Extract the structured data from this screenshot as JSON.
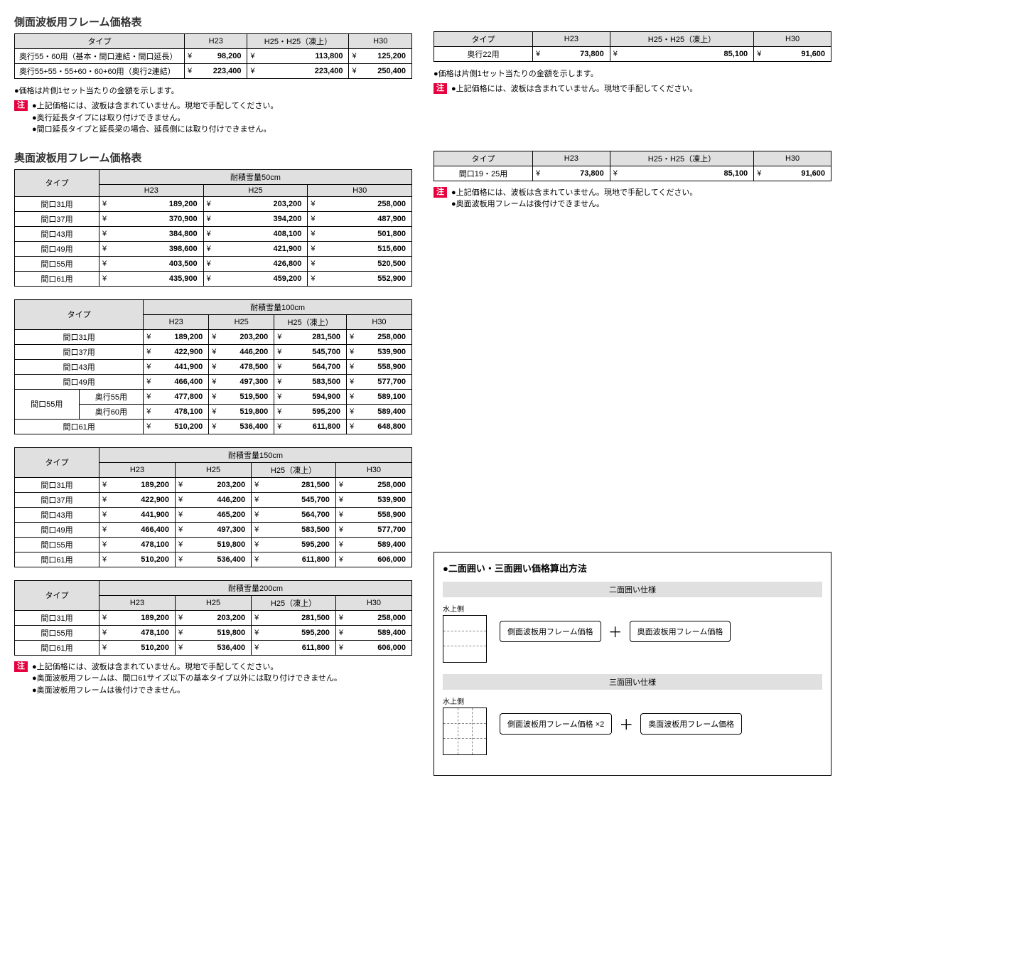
{
  "yen": "¥",
  "section1": {
    "title": "側面波板用フレーム価格表",
    "tableA": {
      "cols": [
        "タイプ",
        "H23",
        "H25・H25（凍上）",
        "H30"
      ],
      "rows": [
        {
          "label": "奥行55・60用（基本・間口連結・間口延長）",
          "v": [
            "98,200",
            "113,800",
            "125,200"
          ]
        },
        {
          "label": "奥行55+55・55+60・60+60用（奥行2連結）",
          "v": [
            "223,400",
            "223,400",
            "250,400"
          ]
        }
      ]
    },
    "note_line": "●価格は片側1セット当たりの金額を示します。",
    "note_tag": "注",
    "notes": [
      "上記価格には、波板は含まれていません。現地で手配してください。",
      "奥行延長タイプには取り付けできません。",
      "間口延長タイプと延長梁の場合、延長側には取り付けできません。"
    ],
    "tableB": {
      "cols": [
        "タイプ",
        "H23",
        "H25・H25（凍上）",
        "H30"
      ],
      "rows": [
        {
          "label": "奥行22用",
          "v": [
            "73,800",
            "85,100",
            "91,600"
          ]
        }
      ]
    },
    "note_lineB": "●価格は片側1セット当たりの金額を示します。",
    "notesB": [
      "上記価格には、波板は含まれていません。現地で手配してください。"
    ]
  },
  "section2": {
    "title": "奥面波板用フレーム価格表",
    "groups": [
      {
        "span_title": "耐積雪量50cm",
        "cols": [
          "H23",
          "H25",
          "H30"
        ],
        "rows": [
          {
            "label": "間口31用",
            "v": [
              "189,200",
              "203,200",
              "258,000"
            ]
          },
          {
            "label": "間口37用",
            "v": [
              "370,900",
              "394,200",
              "487,900"
            ]
          },
          {
            "label": "間口43用",
            "v": [
              "384,800",
              "408,100",
              "501,800"
            ]
          },
          {
            "label": "間口49用",
            "v": [
              "398,600",
              "421,900",
              "515,600"
            ]
          },
          {
            "label": "間口55用",
            "v": [
              "403,500",
              "426,800",
              "520,500"
            ]
          },
          {
            "label": "間口61用",
            "v": [
              "435,900",
              "459,200",
              "552,900"
            ]
          }
        ]
      },
      {
        "span_title": "耐積雪量100cm",
        "cols": [
          "H23",
          "H25",
          "H25（凍上）",
          "H30"
        ],
        "rows": [
          {
            "label": "間口31用",
            "v": [
              "189,200",
              "203,200",
              "281,500",
              "258,000"
            ]
          },
          {
            "label": "間口37用",
            "v": [
              "422,900",
              "446,200",
              "545,700",
              "539,900"
            ]
          },
          {
            "label": "間口43用",
            "v": [
              "441,900",
              "478,500",
              "564,700",
              "558,900"
            ]
          },
          {
            "label": "間口49用",
            "v": [
              "466,400",
              "497,300",
              "583,500",
              "577,700"
            ]
          },
          {
            "label": "間口55用",
            "sub": "奥行55用",
            "v": [
              "477,800",
              "519,500",
              "594,900",
              "589,100"
            ]
          },
          {
            "label": "",
            "sub": "奥行60用",
            "v": [
              "478,100",
              "519,800",
              "595,200",
              "589,400"
            ]
          },
          {
            "label": "間口61用",
            "v": [
              "510,200",
              "536,400",
              "611,800",
              "648,800"
            ]
          }
        ]
      },
      {
        "span_title": "耐積雪量150cm",
        "cols": [
          "H23",
          "H25",
          "H25（凍上）",
          "H30"
        ],
        "rows": [
          {
            "label": "間口31用",
            "v": [
              "189,200",
              "203,200",
              "281,500",
              "258,000"
            ]
          },
          {
            "label": "間口37用",
            "v": [
              "422,900",
              "446,200",
              "545,700",
              "539,900"
            ]
          },
          {
            "label": "間口43用",
            "v": [
              "441,900",
              "465,200",
              "564,700",
              "558,900"
            ]
          },
          {
            "label": "間口49用",
            "v": [
              "466,400",
              "497,300",
              "583,500",
              "577,700"
            ]
          },
          {
            "label": "間口55用",
            "v": [
              "478,100",
              "519,800",
              "595,200",
              "589,400"
            ]
          },
          {
            "label": "間口61用",
            "v": [
              "510,200",
              "536,400",
              "611,800",
              "606,000"
            ]
          }
        ]
      },
      {
        "span_title": "耐積雪量200cm",
        "cols": [
          "H23",
          "H25",
          "H25（凍上）",
          "H30"
        ],
        "rows": [
          {
            "label": "間口31用",
            "v": [
              "189,200",
              "203,200",
              "281,500",
              "258,000"
            ]
          },
          {
            "label": "間口55用",
            "v": [
              "478,100",
              "519,800",
              "595,200",
              "589,400"
            ]
          },
          {
            "label": "間口61用",
            "v": [
              "510,200",
              "536,400",
              "611,800",
              "606,000"
            ]
          }
        ]
      }
    ],
    "note_tag": "注",
    "notes": [
      "上記価格には、波板は含まれていません。現地で手配してください。",
      "奥面波板用フレームは、間口61サイズ以下の基本タイプ以外には取り付けできません。",
      "奥面波板用フレームは後付けできません。"
    ],
    "tableR": {
      "cols": [
        "タイプ",
        "H23",
        "H25・H25（凍上）",
        "H30"
      ],
      "rows": [
        {
          "label": "間口19・25用",
          "v": [
            "73,800",
            "85,100",
            "91,600"
          ]
        }
      ]
    },
    "notesR": [
      "上記価格には、波板は含まれていません。現地で手配してください。",
      "奥面波板用フレームは後付けできません。"
    ]
  },
  "calc": {
    "title": "●二面囲い・三面囲い価格算出方法",
    "sub1": "二面囲い仕様",
    "sub2": "三面囲い仕様",
    "dia_label": "水上側",
    "chip_side": "側面波板用フレーム価格",
    "chip_side2": "側面波板用フレーム価格 ×2",
    "chip_back": "奥面波板用フレーム価格",
    "plus": "＋"
  },
  "type_label": "タイプ"
}
